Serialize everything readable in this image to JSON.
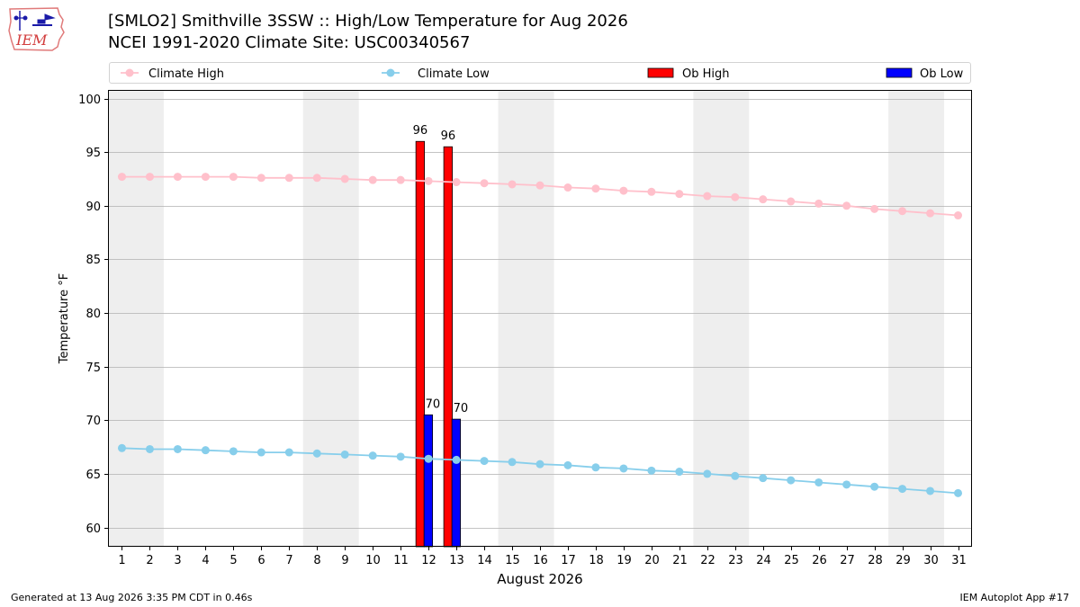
{
  "header": {
    "title_line1": "[SMLO2] Smithville 3SSW :: High/Low Temperature for Aug 2026",
    "title_line2": "NCEI 1991-2020 Climate Site: USC00340567",
    "logo_text": "IEM"
  },
  "footer": {
    "generated": "Generated at 13 Aug 2026 3:35 PM CDT in 0.46s",
    "app": "IEM Autoplot App #17"
  },
  "chart_data": {
    "type": "bar",
    "xlabel": "August 2026",
    "ylabel": "Temperature °F",
    "ylim": [
      58.2,
      100.8
    ],
    "xlim": [
      0.5,
      31.5
    ],
    "yticks": [
      60,
      65,
      70,
      75,
      80,
      85,
      90,
      95,
      100
    ],
    "grid": "horizontal",
    "legend_position": "top",
    "shaded_days": [
      [
        1,
        2
      ],
      [
        8,
        9
      ],
      [
        15,
        16
      ],
      [
        22,
        23
      ],
      [
        29,
        30
      ]
    ],
    "x": [
      1,
      2,
      3,
      4,
      5,
      6,
      7,
      8,
      9,
      10,
      11,
      12,
      13,
      14,
      15,
      16,
      17,
      18,
      19,
      20,
      21,
      22,
      23,
      24,
      25,
      26,
      27,
      28,
      29,
      30,
      31
    ],
    "series": [
      {
        "name": "Climate High",
        "kind": "line",
        "color": "#ffc0cb",
        "values": [
          92.7,
          92.7,
          92.7,
          92.7,
          92.7,
          92.6,
          92.6,
          92.6,
          92.5,
          92.4,
          92.4,
          92.3,
          92.2,
          92.1,
          92.0,
          91.9,
          91.7,
          91.6,
          91.4,
          91.3,
          91.1,
          90.9,
          90.8,
          90.6,
          90.4,
          90.2,
          90.0,
          89.7,
          89.5,
          89.3,
          89.1
        ]
      },
      {
        "name": "Climate Low",
        "kind": "line",
        "color": "#87ceeb",
        "values": [
          67.4,
          67.3,
          67.3,
          67.2,
          67.1,
          67.0,
          67.0,
          66.9,
          66.8,
          66.7,
          66.6,
          66.4,
          66.3,
          66.2,
          66.1,
          65.9,
          65.8,
          65.6,
          65.5,
          65.3,
          65.2,
          65.0,
          64.8,
          64.6,
          64.4,
          64.2,
          64.0,
          63.8,
          63.6,
          63.4,
          63.2
        ]
      },
      {
        "name": "Ob High",
        "kind": "bar",
        "color": "#ff0000",
        "x": [
          12,
          13
        ],
        "values": [
          96,
          95.5
        ],
        "labels": [
          "96",
          "96"
        ]
      },
      {
        "name": "Ob Low",
        "kind": "bar",
        "color": "#0000ff",
        "x": [
          12,
          13
        ],
        "values": [
          70.5,
          70.1
        ],
        "labels": [
          "70",
          "70"
        ]
      }
    ]
  }
}
